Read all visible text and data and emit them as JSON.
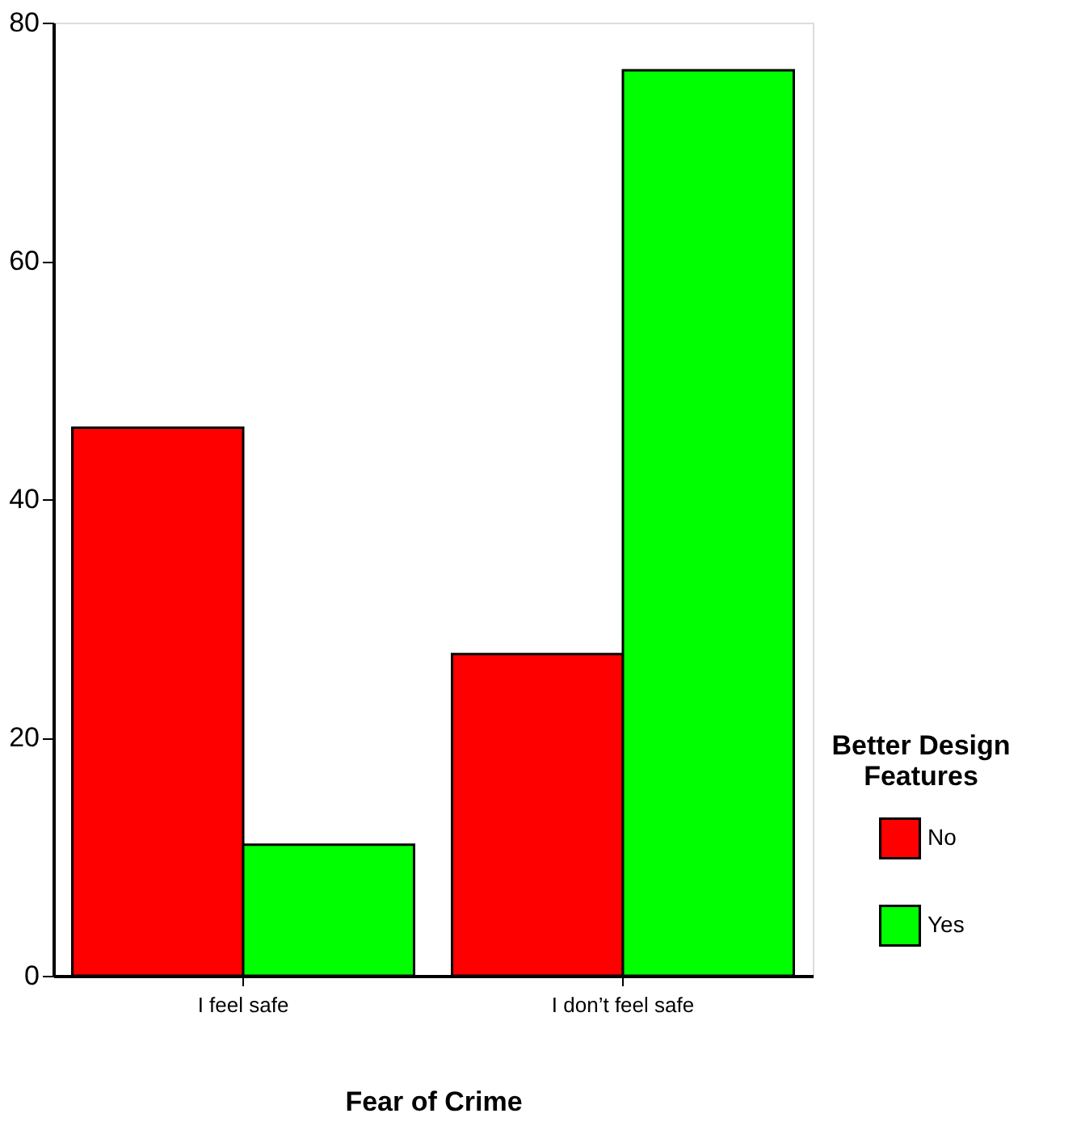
{
  "chart_data": {
    "type": "bar",
    "xlabel": "Fear of Crime",
    "legend_title": "Better Design Features",
    "categories": [
      "I feel safe",
      "I don’t feel safe"
    ],
    "series": [
      {
        "name": "No",
        "color": "#ff0000",
        "values": [
          46,
          27
        ]
      },
      {
        "name": "Yes",
        "color": "#00ff00",
        "values": [
          11,
          76
        ]
      }
    ],
    "ylim": [
      0,
      80
    ],
    "yticks": [
      0,
      20,
      40,
      60,
      80
    ],
    "grid": false,
    "legend": "bottom right"
  }
}
